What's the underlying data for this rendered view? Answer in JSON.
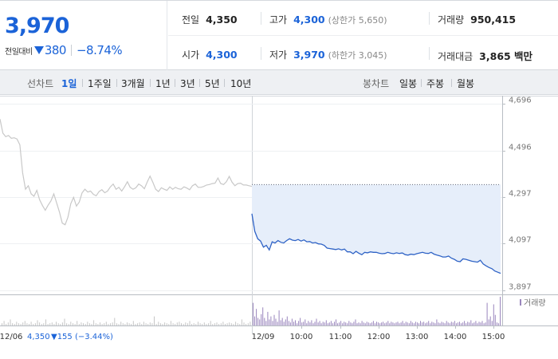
{
  "quote": {
    "price": "3,970",
    "change_label": "전일대비",
    "change_value": "380",
    "change_pct": "−8.74%"
  },
  "stats": {
    "prev_close": {
      "label": "전일",
      "value": "4,350"
    },
    "high": {
      "label": "고가",
      "value": "4,300",
      "sub": "(상한가 5,650)"
    },
    "volume": {
      "label": "거래량",
      "value": "950,415"
    },
    "open": {
      "label": "시가",
      "value": "4,300"
    },
    "low": {
      "label": "저가",
      "value": "3,970",
      "sub": "(하한가 3,045)"
    },
    "trade_value": {
      "label": "거래대금",
      "value": "3,865 백만"
    }
  },
  "periods": {
    "line_label": "선차트",
    "items": [
      "1일",
      "1주일",
      "3개월",
      "1년",
      "3년",
      "5년",
      "10년"
    ],
    "active": "1일",
    "candle_label": "봉차트",
    "candle_items": [
      "일봉",
      "주봉",
      "월봉"
    ]
  },
  "colors": {
    "down_blue": "#1b63d8",
    "line_blue": "#2f63c6",
    "fill_blue": "#e6eefa",
    "prev_gray": "#c8c8c8",
    "volume_purple": "#9a86bd",
    "volume_gray": "#c6c6c6"
  },
  "chart_data": {
    "type": "line",
    "ylim": [
      3880,
      4730
    ],
    "y_ticks": [
      4696,
      4496,
      4297,
      4097,
      3897
    ],
    "y_tick_labels": [
      "4,696",
      "4,496",
      "4,297",
      "4,097",
      "3,897"
    ],
    "reference_price": 4350,
    "legend_volume": "거래량",
    "prev_day": {
      "date": "12/06",
      "close": "4,350",
      "change_label": "▼155 (−3.44%)",
      "points": [
        4630,
        4570,
        4555,
        4560,
        4548,
        4550,
        4545,
        4520,
        4400,
        4330,
        4345,
        4310,
        4300,
        4325,
        4285,
        4260,
        4240,
        4262,
        4280,
        4310,
        4272,
        4232,
        4185,
        4178,
        4210,
        4268,
        4295,
        4258,
        4275,
        4315,
        4330,
        4318,
        4322,
        4308,
        4302,
        4320,
        4328,
        4315,
        4322,
        4340,
        4352,
        4330,
        4338,
        4322,
        4340,
        4362,
        4338,
        4330,
        4336,
        4352,
        4345,
        4332,
        4360,
        4386,
        4360,
        4330,
        4320,
        4336,
        4330,
        4325,
        4340,
        4330,
        4338,
        4332,
        4330,
        4340,
        4335,
        4328,
        4345,
        4352,
        4338,
        4338,
        4342,
        4348,
        4350,
        4354,
        4356,
        4378,
        4354,
        4350,
        4362,
        4385,
        4360,
        4345,
        4354,
        4356,
        4348,
        4348,
        4345,
        4342
      ]
    },
    "today": {
      "date": "12/09",
      "points": [
        4225,
        4150,
        4118,
        4108,
        4082,
        4090,
        4070,
        4105,
        4100,
        4110,
        4103,
        4100,
        4110,
        4118,
        4112,
        4110,
        4115,
        4108,
        4113,
        4105,
        4106,
        4100,
        4102,
        4096,
        4095,
        4090,
        4078,
        4076,
        4074,
        4072,
        4075,
        4070,
        4074,
        4062,
        4062,
        4054,
        4064,
        4056,
        4050,
        4060,
        4058,
        4062,
        4060,
        4060,
        4056,
        4054,
        4055,
        4060,
        4056,
        4054,
        4058,
        4055,
        4057,
        4050,
        4048,
        4052,
        4050,
        4054,
        4057,
        4060,
        4056,
        4055,
        4060,
        4052,
        4048,
        4045,
        4040,
        4040,
        4044,
        4035,
        4030,
        4022,
        4020,
        4032,
        4030,
        4026,
        4022,
        4020,
        4018,
        4026,
        4010,
        4002,
        3995,
        3990,
        3980,
        3975,
        3970
      ]
    },
    "x_labels": [
      "12/06",
      "12/09",
      "10:00",
      "11:00",
      "12:00",
      "13:00",
      "14:00",
      "15:00"
    ],
    "volume_prev": [
      3,
      6,
      2,
      4,
      8,
      3,
      2,
      5,
      3,
      2,
      4,
      6,
      3,
      2,
      5,
      2,
      3,
      7,
      4,
      2,
      3,
      8,
      2,
      3,
      4,
      2,
      5,
      3,
      2,
      4,
      9,
      3,
      2,
      5,
      3,
      2,
      6,
      2,
      4,
      3,
      2,
      5,
      3,
      2,
      7,
      3,
      2,
      4,
      2,
      3,
      5,
      2,
      3,
      4,
      10,
      3,
      2,
      5,
      3,
      2,
      4,
      3,
      2,
      6,
      2,
      3,
      4,
      2,
      5,
      3,
      2,
      4,
      3,
      12,
      2,
      5,
      3,
      2,
      4,
      3,
      2,
      6,
      3,
      2,
      4,
      5,
      3,
      2,
      4,
      3,
      6,
      2,
      3,
      2,
      5,
      3,
      2,
      4,
      2,
      3,
      6,
      2,
      3,
      4,
      2,
      3,
      5,
      2,
      3,
      4,
      3,
      2,
      5,
      3,
      2,
      8,
      4,
      2,
      3,
      5
    ],
    "volume_today": [
      30,
      12,
      22,
      10,
      8,
      15,
      24,
      10,
      6,
      18,
      8,
      12,
      6,
      14,
      9,
      5,
      20,
      7,
      10,
      5,
      8,
      12,
      6,
      4,
      9,
      5,
      7,
      3,
      6,
      10,
      4,
      5,
      8,
      3,
      6,
      4,
      7,
      3,
      5,
      9,
      4,
      6,
      3,
      5,
      4,
      7,
      3,
      4,
      6,
      3,
      5,
      8,
      3,
      4,
      6,
      3,
      5,
      4,
      3,
      6,
      4,
      3,
      5,
      8,
      3,
      4,
      3,
      6,
      4,
      3,
      5,
      4,
      3,
      4,
      6,
      3,
      5,
      4,
      3,
      4,
      5,
      3,
      4,
      6,
      3,
      5,
      4,
      3,
      4,
      5,
      3,
      4,
      6,
      3,
      5,
      4,
      3,
      6,
      4,
      3,
      5,
      4,
      3,
      6,
      4,
      5,
      3,
      4,
      6,
      3,
      5,
      4,
      3,
      8,
      4,
      3,
      5,
      4,
      3,
      6,
      4,
      3,
      5,
      4,
      6,
      3,
      4,
      5,
      3,
      4,
      6,
      3,
      5,
      4,
      7,
      3,
      4,
      6,
      3,
      5,
      4,
      6,
      3,
      4,
      30,
      8,
      12,
      6,
      28,
      14,
      4,
      3,
      38
    ]
  }
}
